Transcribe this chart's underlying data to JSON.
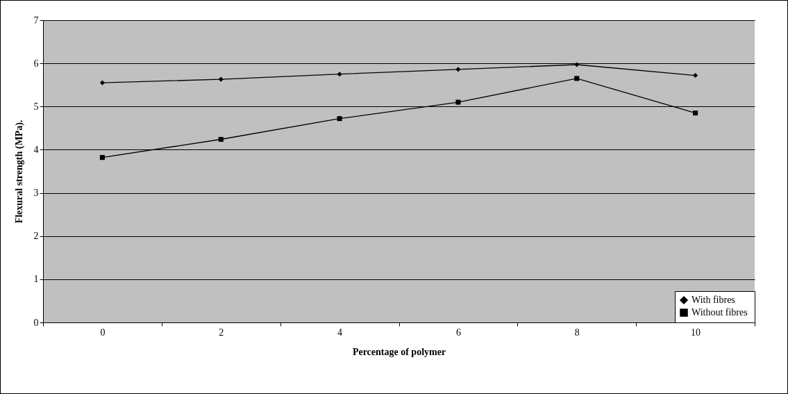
{
  "chart_data": {
    "type": "line",
    "xlabel": "Percentage of polymer",
    "ylabel": "Flexural strength (MPa).",
    "categories": [
      "0",
      "2",
      "4",
      "6",
      "8",
      "10"
    ],
    "series": [
      {
        "name": "With fibres",
        "color": "#000000",
        "marker": "diamond",
        "values": [
          5.55,
          5.63,
          5.75,
          5.86,
          5.97,
          5.72
        ]
      },
      {
        "name": "Without  fibres",
        "color": "#000000",
        "marker": "square",
        "values": [
          3.82,
          4.24,
          4.72,
          5.1,
          5.65,
          4.85
        ]
      }
    ],
    "ylim": [
      0,
      7
    ],
    "yticks": [
      0,
      1,
      2,
      3,
      4,
      5,
      6,
      7
    ],
    "grid": "y",
    "legend": "bottom right"
  }
}
